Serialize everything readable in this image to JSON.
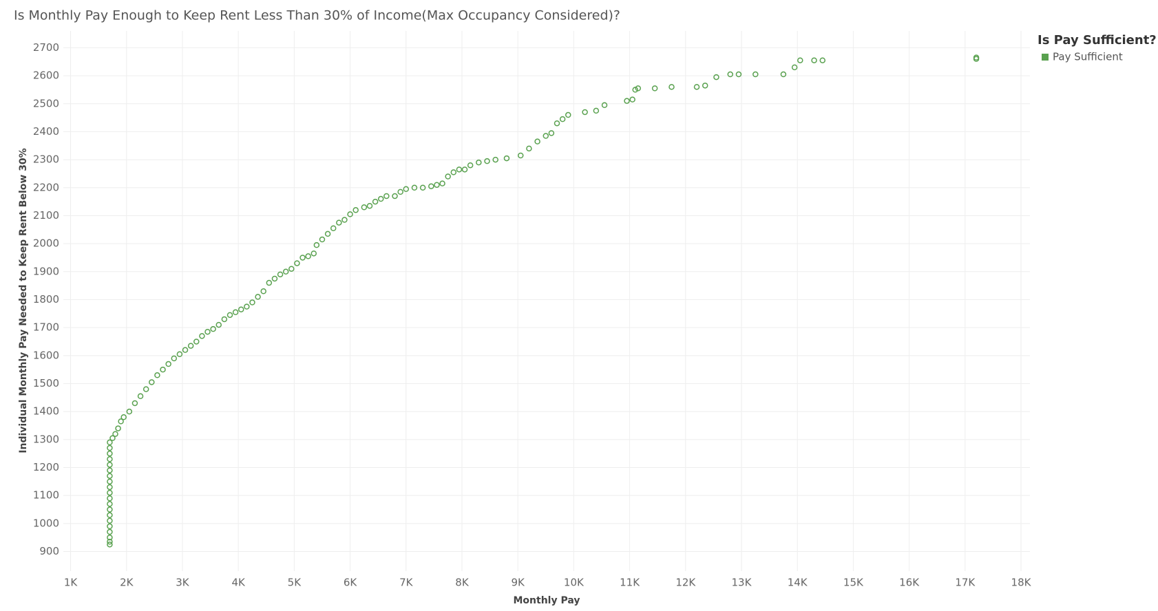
{
  "chart_data": {
    "type": "scatter",
    "title": "Is Monthly Pay Enough to Keep Rent Less Than 30% of Income(Max Occupancy Considered)?",
    "x_label": "Monthly Pay",
    "y_label": "Individual Monthly Pay Needed to Keep Rent Below 30%",
    "legend_title": "Is Pay Sufficient?",
    "legend_position": "right",
    "grid": true,
    "x": [
      1700,
      1700,
      1700,
      1700,
      1700,
      1700,
      1700,
      1700,
      1700,
      1700,
      1700,
      1700,
      1700,
      1700,
      1700,
      1700,
      1700,
      1700,
      1700,
      1700,
      1750,
      1800,
      1850,
      1900,
      1950,
      2050,
      2150,
      2250,
      2350,
      2450,
      2550,
      2650,
      2750,
      2850,
      2950,
      3050,
      3150,
      3250,
      3350,
      3450,
      3550,
      3650,
      3750,
      3850,
      3950,
      4050,
      4150,
      4250,
      4350,
      4450,
      4550,
      4650,
      4750,
      4850,
      4950,
      5050,
      5150,
      5250,
      5350,
      5400,
      5500,
      5600,
      5700,
      5800,
      5900,
      6000,
      6100,
      6250,
      6350,
      6450,
      6550,
      6650,
      6800,
      6900,
      7000,
      7150,
      7300,
      7450,
      7550,
      7650,
      7750,
      7850,
      7950,
      8050,
      8150,
      8300,
      8450,
      8600,
      8800,
      9050,
      9200,
      9350,
      9500,
      9600,
      9700,
      9800,
      9900,
      10200,
      10400,
      10550,
      10950,
      11050,
      11100,
      11150,
      11450,
      11750,
      12200,
      12350,
      12550,
      12800,
      12950,
      13250,
      13750,
      13950,
      14050,
      14300,
      14450,
      17200,
      17200
    ],
    "series": [
      {
        "name": "Pay Sufficient",
        "color": "#59a14f",
        "values": [
          925,
          935,
          950,
          970,
          990,
          1010,
          1030,
          1050,
          1070,
          1090,
          1110,
          1130,
          1150,
          1170,
          1190,
          1210,
          1230,
          1250,
          1270,
          1290,
          1305,
          1320,
          1340,
          1365,
          1380,
          1400,
          1430,
          1455,
          1480,
          1505,
          1530,
          1550,
          1570,
          1590,
          1605,
          1620,
          1635,
          1650,
          1670,
          1685,
          1695,
          1710,
          1730,
          1745,
          1755,
          1765,
          1775,
          1790,
          1810,
          1830,
          1860,
          1875,
          1890,
          1900,
          1910,
          1930,
          1950,
          1955,
          1965,
          1995,
          2015,
          2035,
          2055,
          2075,
          2085,
          2105,
          2120,
          2130,
          2135,
          2150,
          2160,
          2170,
          2170,
          2185,
          2195,
          2200,
          2200,
          2205,
          2210,
          2215,
          2240,
          2255,
          2265,
          2265,
          2280,
          2290,
          2295,
          2300,
          2305,
          2315,
          2340,
          2365,
          2385,
          2395,
          2430,
          2445,
          2460,
          2470,
          2475,
          2495,
          2510,
          2515,
          2550,
          2555,
          2555,
          2560,
          2560,
          2565,
          2595,
          2605,
          2605,
          2605,
          2605,
          2630,
          2655,
          2655,
          2655,
          2660,
          2665
        ]
      }
    ],
    "xlim": [
      870,
      18160
    ],
    "xticks": [
      {
        "value": 1000,
        "label": "1K"
      },
      {
        "value": 2000,
        "label": "2K"
      },
      {
        "value": 3000,
        "label": "3K"
      },
      {
        "value": 4000,
        "label": "4K"
      },
      {
        "value": 5000,
        "label": "5K"
      },
      {
        "value": 6000,
        "label": "6K"
      },
      {
        "value": 7000,
        "label": "7K"
      },
      {
        "value": 8000,
        "label": "8K"
      },
      {
        "value": 9000,
        "label": "9K"
      },
      {
        "value": 10000,
        "label": "10K"
      },
      {
        "value": 11000,
        "label": "11K"
      },
      {
        "value": 12000,
        "label": "12K"
      },
      {
        "value": 13000,
        "label": "13K"
      },
      {
        "value": 14000,
        "label": "14K"
      },
      {
        "value": 15000,
        "label": "15K"
      },
      {
        "value": 16000,
        "label": "16K"
      },
      {
        "value": 17000,
        "label": "17K"
      },
      {
        "value": 18000,
        "label": "18K"
      }
    ],
    "ylim": [
      830,
      2760
    ],
    "yticks": [
      900,
      1000,
      1100,
      1200,
      1300,
      1400,
      1500,
      1600,
      1700,
      1800,
      1900,
      2000,
      2100,
      2200,
      2300,
      2400,
      2500,
      2600,
      2700
    ]
  }
}
